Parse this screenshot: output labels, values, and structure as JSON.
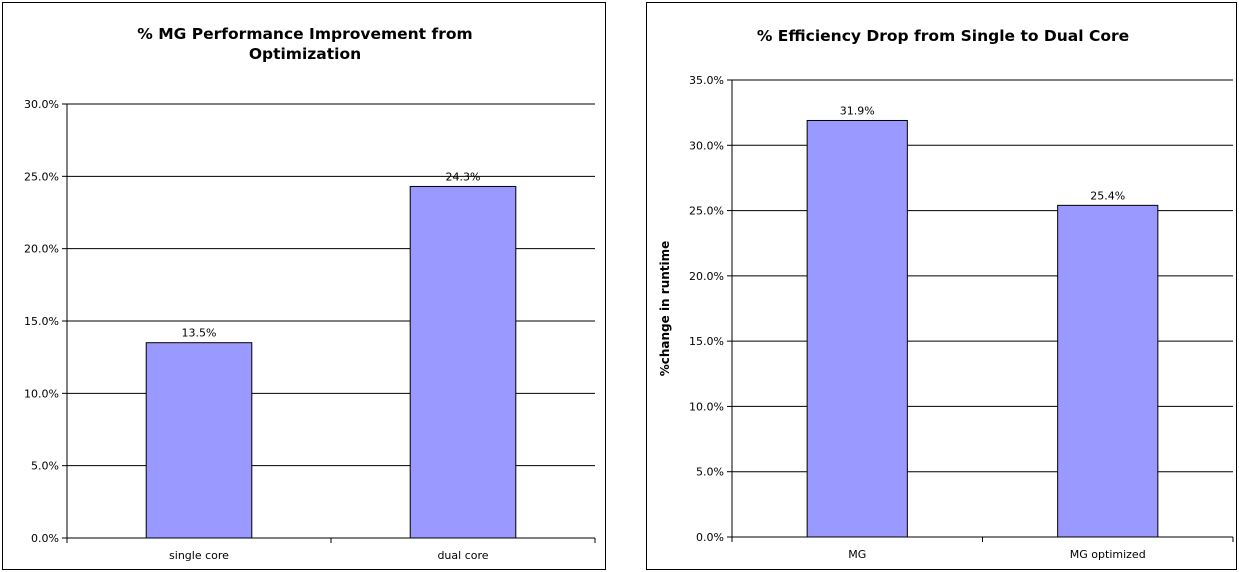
{
  "colors": {
    "bar_fill": "#9999ff",
    "bar_stroke": "#000000",
    "grid": "#000000"
  },
  "chart_data": [
    {
      "type": "bar",
      "title_lines": [
        "% MG Performance Improvement from",
        "Optimization"
      ],
      "xlabel": "",
      "ylabel": "",
      "categories": [
        "single core",
        "dual core"
      ],
      "values": [
        13.5,
        24.3
      ],
      "value_labels": [
        "13.5%",
        "24.3%"
      ],
      "ylim": [
        0,
        30
      ],
      "yticks": [
        0,
        5,
        10,
        15,
        20,
        25,
        30
      ],
      "ytick_labels": [
        "0.0%",
        "5.0%",
        "10.0%",
        "15.0%",
        "20.0%",
        "25.0%",
        "30.0%"
      ],
      "grid": true,
      "legend": "none"
    },
    {
      "type": "bar",
      "title_lines": [
        "% Efficiency Drop from Single to Dual Core"
      ],
      "xlabel": "",
      "ylabel": "%change in runtime",
      "categories": [
        "MG",
        "MG optimized"
      ],
      "values": [
        31.9,
        25.4
      ],
      "value_labels": [
        "31.9%",
        "25.4%"
      ],
      "ylim": [
        0,
        35
      ],
      "yticks": [
        0,
        5,
        10,
        15,
        20,
        25,
        30,
        35
      ],
      "ytick_labels": [
        "0.0%",
        "5.0%",
        "10.0%",
        "15.0%",
        "20.0%",
        "25.0%",
        "30.0%",
        "35.0%"
      ],
      "grid": true,
      "legend": "none"
    }
  ]
}
